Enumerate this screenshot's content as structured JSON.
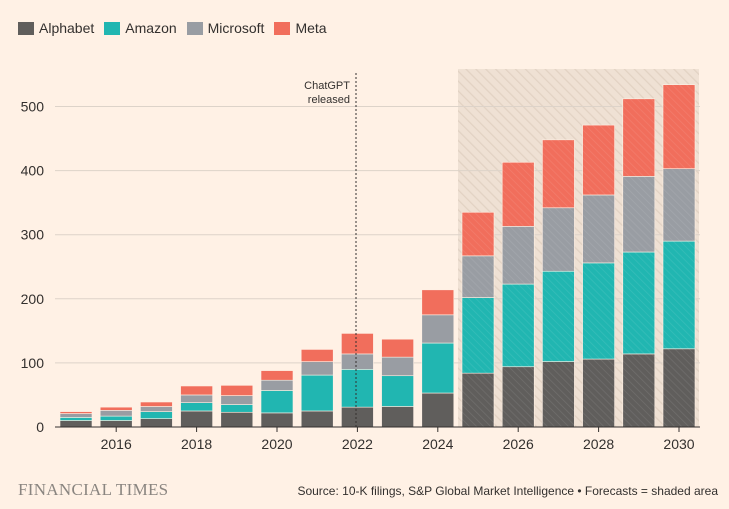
{
  "legend": [
    {
      "name": "Alphabet",
      "color": "#605E5C"
    },
    {
      "name": "Amazon",
      "color": "#21B6B1"
    },
    {
      "name": "Microsoft",
      "color": "#999DA3"
    },
    {
      "name": "Meta",
      "color": "#F16E5C"
    }
  ],
  "annotation": {
    "line1": "ChatGPT",
    "line2": "released"
  },
  "footer": {
    "logo": "FINANCIAL TIMES",
    "source": "Source: 10-K filings, S&P Global Market Intelligence • Forecasts = shaded area"
  },
  "chart_data": {
    "type": "bar",
    "stacked": true,
    "x": [
      2015,
      2016,
      2017,
      2018,
      2019,
      2020,
      2021,
      2022,
      2023,
      2024,
      2025,
      2026,
      2027,
      2028,
      2029,
      2030
    ],
    "x_ticks": [
      "2016",
      "2018",
      "2020",
      "2022",
      "2024",
      "2026",
      "2028",
      "2030"
    ],
    "y_ticks": [
      "0",
      "100",
      "200",
      "300",
      "400",
      "500"
    ],
    "ylim": [
      0,
      560
    ],
    "series": [
      {
        "name": "Alphabet",
        "color": "#605E5C",
        "values": [
          10,
          10,
          13,
          25,
          23,
          22,
          25,
          31,
          32,
          53,
          84,
          94,
          102,
          106,
          114,
          122
        ]
      },
      {
        "name": "Amazon",
        "color": "#21B6B1",
        "values": [
          5,
          7,
          11,
          13,
          12,
          35,
          56,
          59,
          48,
          78,
          118,
          129,
          141,
          150,
          159,
          168
        ]
      },
      {
        "name": "Microsoft",
        "color": "#999DA3",
        "values": [
          6,
          9,
          8,
          12,
          14,
          16,
          21,
          24,
          29,
          44,
          65,
          90,
          99,
          106,
          118,
          113
        ]
      },
      {
        "name": "Meta",
        "color": "#F16E5C",
        "values": [
          3,
          5,
          7,
          14,
          16,
          15,
          19,
          32,
          28,
          39,
          68,
          100,
          106,
          109,
          121,
          131
        ]
      }
    ],
    "forecast_from": 2025,
    "annotation_x": 2022,
    "grid": true,
    "legend_position": "top-left"
  }
}
